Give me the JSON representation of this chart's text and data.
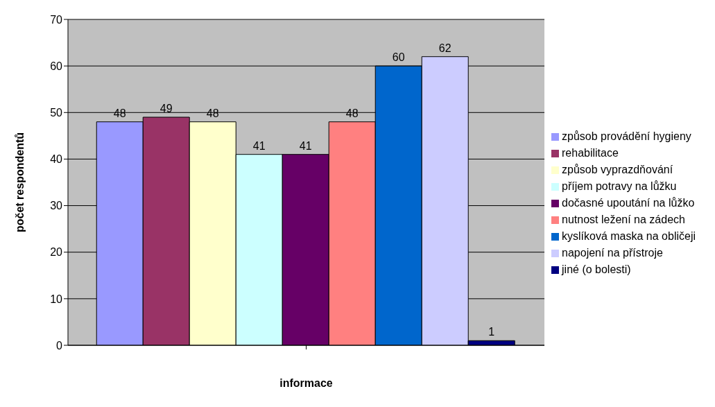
{
  "chart_data": {
    "type": "bar",
    "xlabel": "informace",
    "ylabel": "počet respondentů",
    "categories": [
      null
    ],
    "series": [
      {
        "name": "způsob provádění hygieny",
        "color": "#9999ff",
        "values": [
          48
        ]
      },
      {
        "name": "rehabilitace",
        "color": "#993366",
        "values": [
          49
        ]
      },
      {
        "name": "způsob vyprazdňování",
        "color": "#ffffcc",
        "values": [
          48
        ]
      },
      {
        "name": "příjem potravy na lůžku",
        "color": "#ccffff",
        "values": [
          41
        ]
      },
      {
        "name": "dočasné upoutání na lůžko",
        "color": "#660066",
        "values": [
          41
        ]
      },
      {
        "name": "nutnost ležení na zádech",
        "color": "#ff8080",
        "values": [
          48
        ]
      },
      {
        "name": "kyslíková maska na obličeji",
        "color": "#0066cc",
        "values": [
          60
        ]
      },
      {
        "name": "napojení na přístroje",
        "color": "#ccccff",
        "values": [
          62
        ]
      },
      {
        "name": "jiné (o bolesti)",
        "color": "#000080",
        "values": [
          1
        ]
      }
    ],
    "ylim": [
      0,
      70
    ],
    "yticks": [
      0,
      10,
      20,
      30,
      40,
      50,
      60,
      70
    ],
    "grid": "y",
    "legend": "right",
    "data_labels": true
  }
}
